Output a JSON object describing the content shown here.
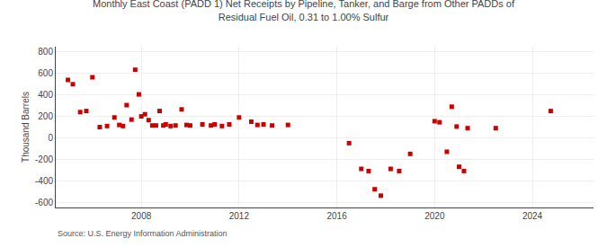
{
  "chart_data": {
    "type": "scatter",
    "title": "Monthly East Coast (PADD 1) Net Receipts by Pipeline, Tanker, and Barge from Other PADDs of\nResidual Fuel Oil, 0.31 to 1.00% Sulfur",
    "ylabel": "Thousand Barrels",
    "annotations": [
      "Source: U.S. Energy Information Administration"
    ],
    "x": [
      2005.0,
      2005.2,
      2005.5,
      2005.75,
      2006.0,
      2006.3,
      2006.6,
      2006.9,
      2007.1,
      2007.25,
      2007.4,
      2007.6,
      2007.75,
      2007.9,
      2008.0,
      2008.15,
      2008.3,
      2008.45,
      2008.6,
      2008.75,
      2008.9,
      2009.0,
      2009.2,
      2009.4,
      2009.65,
      2009.85,
      2010.0,
      2010.5,
      2010.85,
      2011.0,
      2011.3,
      2011.6,
      2012.0,
      2012.5,
      2012.75,
      2013.0,
      2013.35,
      2014.0,
      2016.5,
      2017.0,
      2017.3,
      2017.55,
      2017.8,
      2018.2,
      2018.55,
      2019.0,
      2020.0,
      2020.2,
      2020.5,
      2020.7,
      2020.9,
      2021.0,
      2021.2,
      2021.35,
      2022.5,
      2024.75
    ],
    "values": [
      540,
      500,
      240,
      250,
      565,
      100,
      110,
      190,
      120,
      110,
      305,
      170,
      635,
      405,
      200,
      220,
      165,
      115,
      115,
      250,
      115,
      125,
      110,
      115,
      265,
      120,
      115,
      125,
      115,
      125,
      110,
      125,
      190,
      150,
      120,
      125,
      115,
      120,
      -50,
      -290,
      -310,
      -480,
      -540,
      -290,
      -310,
      -150,
      155,
      145,
      -130,
      290,
      105,
      -270,
      -310,
      90,
      90,
      250
    ],
    "color": "#cc0000",
    "marker": "square",
    "xlim": [
      2004.5,
      2026.5
    ],
    "ylim": [
      -650,
      850
    ],
    "xticks": [
      2008,
      2012,
      2016,
      2020,
      2024
    ],
    "yticks": [
      -600,
      -400,
      -200,
      0,
      200,
      400,
      600,
      800
    ],
    "grid": true
  }
}
